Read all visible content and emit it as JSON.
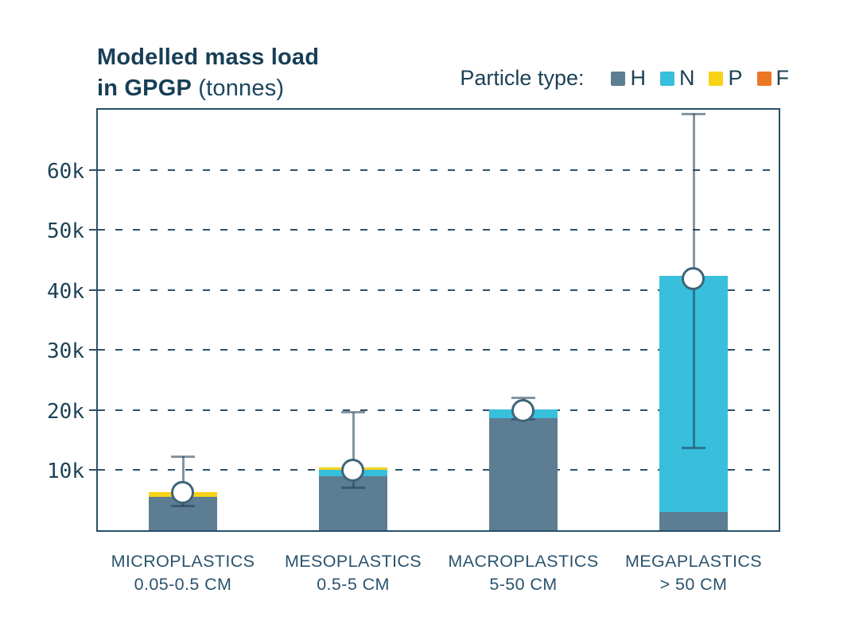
{
  "title": {
    "line1": "Modelled mass load",
    "line2_bold": "in GPGP",
    "line2_regular": " (tonnes)"
  },
  "legend": {
    "label": "Particle type:",
    "items": [
      {
        "key": "H",
        "color": "#5d7d92"
      },
      {
        "key": "N",
        "color": "#38bfdc"
      },
      {
        "key": "P",
        "color": "#f8d216"
      },
      {
        "key": "F",
        "color": "#ec7723"
      }
    ]
  },
  "chart_data": {
    "type": "bar",
    "subtype": "stacked-bars-with-error-bars-and-markers",
    "title": "Modelled mass load in GPGP (tonnes)",
    "unit": "kilotonnes (1k = 1,000 tonnes)",
    "categories": [
      {
        "label": "MICROPLASTICS",
        "size": "0.05-0.5 CM"
      },
      {
        "label": "MESOPLASTICS",
        "size": "0.5-5 CM"
      },
      {
        "label": "MACROPLASTICS",
        "size": "5-50 CM"
      },
      {
        "label": "MEGAPLASTICS",
        "size": "> 50 CM"
      }
    ],
    "stack_order_bottom_to_top": [
      "H",
      "N",
      "P",
      "F"
    ],
    "series": [
      {
        "name": "H",
        "values": [
          5.6,
          9.0,
          18.6,
          3.1
        ]
      },
      {
        "name": "N",
        "values": [
          0,
          1.1,
          1.5,
          39.2
        ]
      },
      {
        "name": "P",
        "values": [
          0.8,
          0.3,
          0,
          0
        ]
      },
      {
        "name": "F",
        "values": [
          0,
          0,
          0,
          0
        ]
      }
    ],
    "totals": [
      6.4,
      10.4,
      20.1,
      42.3
    ],
    "markers_model_estimate": [
      6.4,
      10.0,
      20.0,
      42.0
    ],
    "error_low": [
      4.0,
      7.1,
      18.4,
      13.7
    ],
    "error_high": [
      12.3,
      19.6,
      22.0,
      69.3
    ],
    "y_ticks": [
      {
        "label": "10k",
        "value": 10
      },
      {
        "label": "20k",
        "value": 20
      },
      {
        "label": "30k",
        "value": 30
      },
      {
        "label": "40k",
        "value": 40
      },
      {
        "label": "50k",
        "value": 50
      },
      {
        "label": "60k",
        "value": 60
      }
    ],
    "ylim": [
      0,
      70
    ],
    "grid": "dashed-horizontal",
    "legend_position": "top-right"
  },
  "colors": {
    "text_navy": "#1d4156",
    "plot_border": "#27506a",
    "grid_dash": "#2e5068",
    "error_bar": "rgba(32,62,82,0.55)",
    "marker_fill": "#ffffff",
    "marker_border": "#3f6579"
  }
}
